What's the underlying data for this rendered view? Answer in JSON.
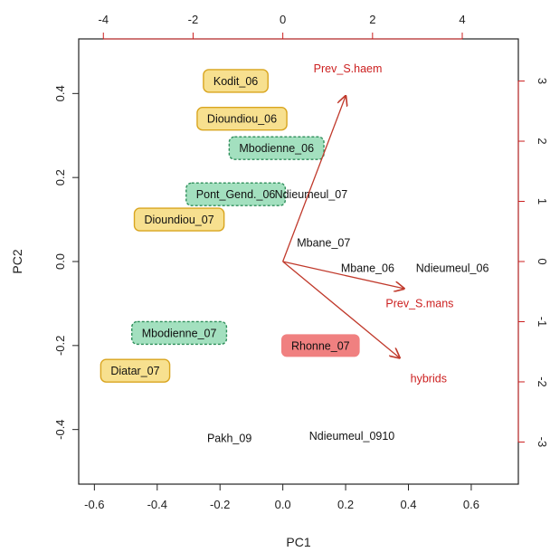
{
  "chart_data": {
    "type": "scatter",
    "subtype": "biplot",
    "xlabel": "PC1",
    "ylabel": "PC2",
    "xlim": [
      -0.65,
      0.75
    ],
    "ylim": [
      -0.53,
      0.53
    ],
    "x_ticks": [
      -0.6,
      -0.4,
      -0.2,
      0.0,
      0.2,
      0.4,
      0.6
    ],
    "x_tick_labels": [
      "-0.6",
      "-0.4",
      "-0.2",
      "0.0",
      "0.2",
      "0.4",
      "0.6"
    ],
    "y_ticks": [
      -0.4,
      -0.2,
      0.0,
      0.2,
      0.4
    ],
    "y_tick_labels": [
      "-0.4",
      "-0.2",
      "0.0",
      "0.2",
      "0.4"
    ],
    "top_axis": {
      "lim": [
        -4.55,
        5.25
      ],
      "ticks": [
        -4,
        -2,
        0,
        2,
        4
      ],
      "tick_labels": [
        "-4",
        "-2",
        "0",
        "2",
        "4"
      ],
      "color": "#cc1f1f"
    },
    "right_axis": {
      "lim": [
        -3.7,
        3.7
      ],
      "ticks": [
        -3,
        -2,
        -1,
        0,
        1,
        2,
        3
      ],
      "tick_labels": [
        "-3",
        "-2",
        "-1",
        "0",
        "1",
        "2",
        "3"
      ],
      "color": "#cc1f1f"
    },
    "grid": false,
    "points": [
      {
        "label": "Kodit_06",
        "x": -0.15,
        "y": 0.43,
        "box": "yellow"
      },
      {
        "label": "Dioundiou_06",
        "x": -0.13,
        "y": 0.34,
        "box": "yellow"
      },
      {
        "label": "Mbodienne_06",
        "x": -0.02,
        "y": 0.27,
        "box": "green"
      },
      {
        "label": "Pont_Gend._06",
        "x": -0.15,
        "y": 0.16,
        "box": "green"
      },
      {
        "label": "Ndieumeul_07",
        "x": 0.09,
        "y": 0.16,
        "box": "none"
      },
      {
        "label": "Dioundiou_07",
        "x": -0.33,
        "y": 0.1,
        "box": "yellow"
      },
      {
        "label": "Mbane_07",
        "x": 0.13,
        "y": 0.045,
        "box": "none"
      },
      {
        "label": "Mbane_06",
        "x": 0.27,
        "y": -0.015,
        "box": "none"
      },
      {
        "label": "Ndieumeul_06",
        "x": 0.54,
        "y": -0.015,
        "box": "none"
      },
      {
        "label": "Mbodienne_07",
        "x": -0.33,
        "y": -0.17,
        "box": "green"
      },
      {
        "label": "Rhonne_07",
        "x": 0.12,
        "y": -0.2,
        "box": "red"
      },
      {
        "label": "Diatar_07",
        "x": -0.47,
        "y": -0.26,
        "box": "yellow"
      },
      {
        "label": "Pakh_09",
        "x": -0.17,
        "y": -0.42,
        "box": "none"
      },
      {
        "label": "Ndieumeul_0910",
        "x": 0.22,
        "y": -0.415,
        "box": "none"
      }
    ],
    "vectors": [
      {
        "label": "Prev_S.haem",
        "x": 1.4,
        "y": 2.75,
        "label_x": 1.45,
        "label_y": 3.2
      },
      {
        "label": "Prev_S.mans",
        "x": 2.7,
        "y": -0.45,
        "label_x": 3.05,
        "label_y": -0.7
      },
      {
        "label": "hybrids",
        "x": 2.6,
        "y": -1.6,
        "label_x": 3.25,
        "label_y": -1.95
      }
    ],
    "colors": {
      "axis": "#222222",
      "secondary_axis": "#cc1f1f",
      "arrow": "#c0392b",
      "yellow_fill": "#f7e08f",
      "yellow_stroke": "#d9a51f",
      "green_fill": "#a3e0bf",
      "green_stroke": "#2f8f5b",
      "red_fill": "#f08080"
    }
  }
}
